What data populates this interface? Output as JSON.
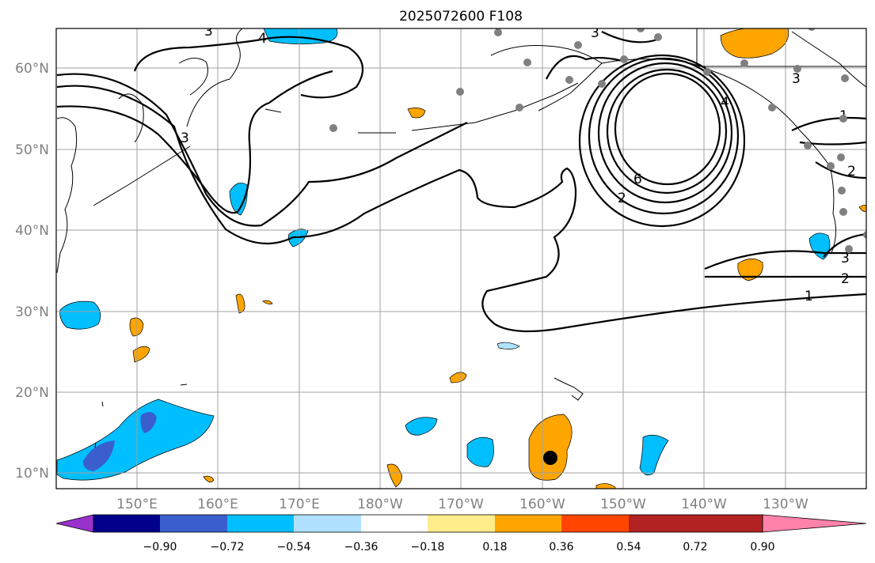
{
  "title": "2025072600 F108",
  "lon_ticks": [
    "150°E",
    "160°E",
    "170°E",
    "180°W",
    "170°W",
    "160°W",
    "150°W",
    "140°W",
    "130°W"
  ],
  "lat_ticks": [
    "60°N",
    "50°N",
    "40°N",
    "30°N",
    "20°N",
    "10°N"
  ],
  "colorbar": {
    "tick_labels": [
      "−0.90",
      "−0.72",
      "−0.54",
      "−0.36",
      "−0.18",
      "0.18",
      "0.36",
      "0.54",
      "0.72",
      "0.90"
    ],
    "colors": [
      "#9932cc",
      "#00008b",
      "#3a5fcd",
      "#00bfff",
      "#b0e2ff",
      "#ffffff",
      "#ffec8b",
      "#ffa500",
      "#ff4500",
      "#b22222",
      "#ff82ab"
    ]
  },
  "contour_labels": [
    "3",
    "4",
    "3",
    "3",
    "3",
    "1",
    "2",
    "3",
    "2",
    "1",
    "2",
    "6",
    "4"
  ],
  "colors": {
    "positive_fill": "#ffa500",
    "negative_fill": "#00bfff",
    "strong_negative_fill": "#3a5fcd",
    "station_marker": "#808080",
    "storm_marker": "#000000"
  },
  "storm_center": {
    "lon_deg_e": 201,
    "lat_deg_n": 12
  }
}
